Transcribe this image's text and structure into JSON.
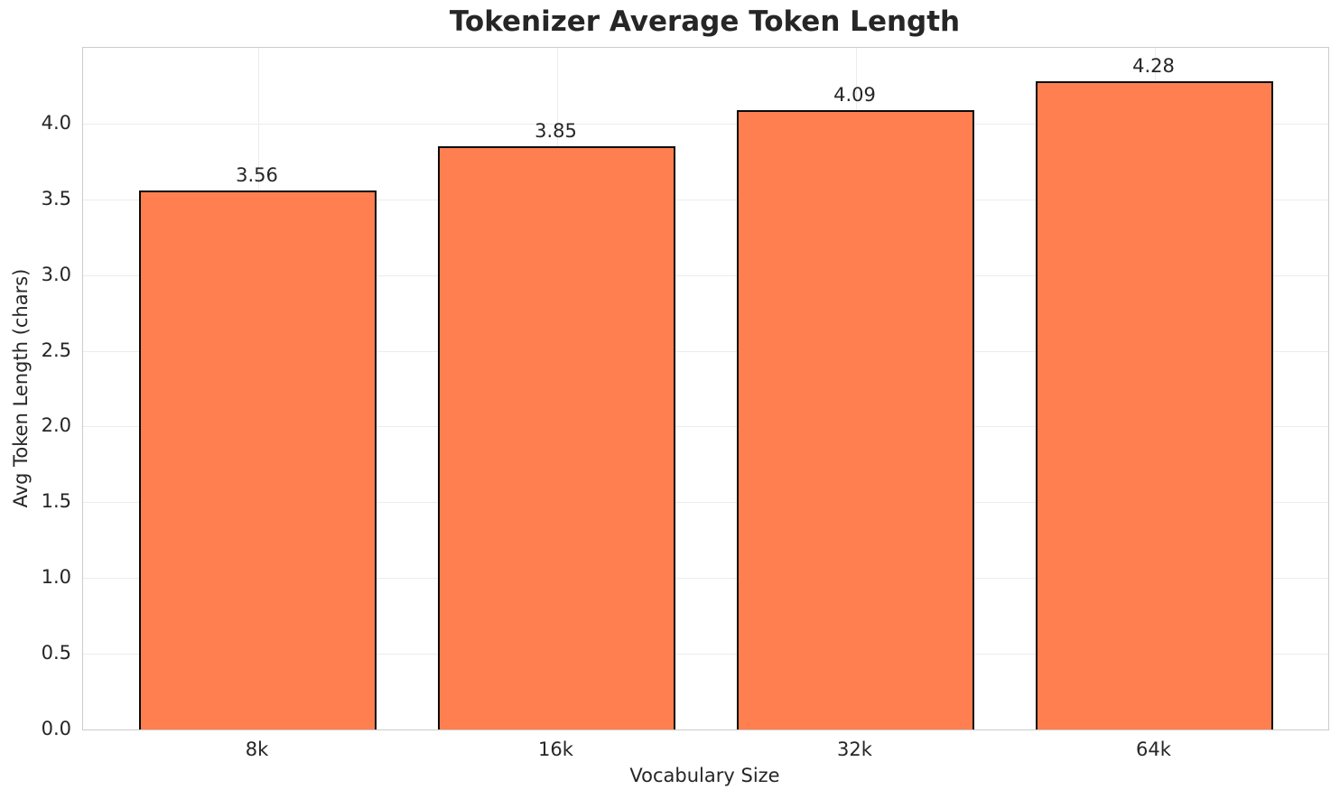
{
  "chart_data": {
    "type": "bar",
    "title": "Tokenizer Average Token Length",
    "xlabel": "Vocabulary Size",
    "ylabel": "Avg Token Length (chars)",
    "categories": [
      "8k",
      "16k",
      "32k",
      "64k"
    ],
    "values": [
      3.56,
      3.85,
      4.09,
      4.28
    ],
    "bar_value_labels": [
      "3.56",
      "3.85",
      "4.09",
      "4.28"
    ],
    "ylim": [
      0,
      4.5
    ],
    "yticks": [
      0,
      0.5,
      1,
      1.5,
      2,
      2.5,
      3,
      3.5,
      4
    ],
    "ytick_labels": [
      "0.0",
      "0.5",
      "1.0",
      "1.5",
      "2.0",
      "2.5",
      "3.0",
      "3.5",
      "4.0"
    ],
    "grid": true,
    "legend_position": "none",
    "colors": {
      "bar_fill": "#FF7F50",
      "bar_edge": "#0a0a0a",
      "grid_line": "#ececec",
      "axis_spine": "#cccccc",
      "text": "#262626"
    }
  }
}
